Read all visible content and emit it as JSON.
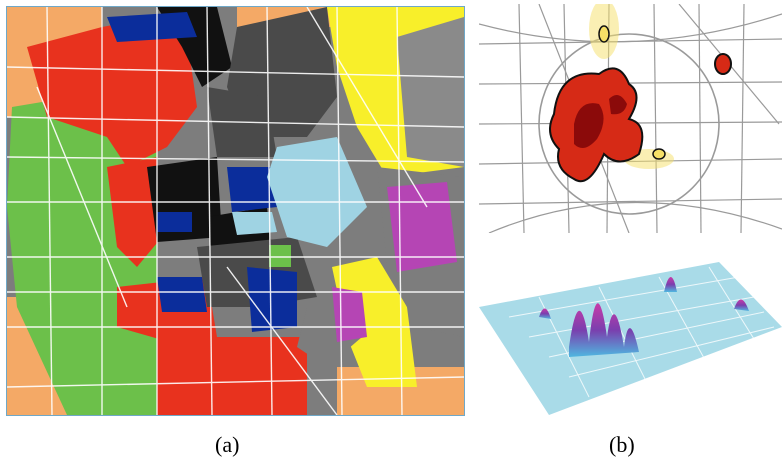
{
  "captions": {
    "a": "(a)",
    "b": "(b)"
  },
  "colors": {
    "green": "#6cc04a",
    "red": "#e8321e",
    "black": "#111111",
    "darkgray": "#4a4a4a",
    "gray": "#7d7d7d",
    "navy": "#0b2d9b",
    "lightblue": "#9fd3e3",
    "yellow": "#f8ef2a",
    "magenta": "#b545b4",
    "orange": "#f4a966",
    "road": "#ffffff",
    "heat_dark": "#8b0a0a",
    "heat_mid": "#d62a16",
    "heat_glow": "#f6e067",
    "surface": "#a9dbe8",
    "peak": "#7a3fae"
  }
}
